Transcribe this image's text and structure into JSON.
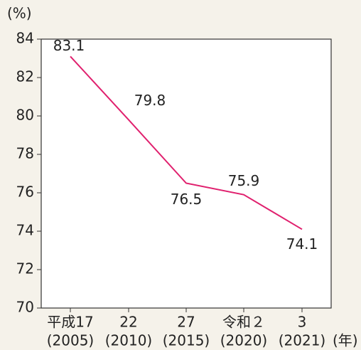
{
  "chart_data": {
    "type": "line",
    "y_label": "(%)",
    "x_unit": "(年)",
    "categories": [
      "平成17",
      "22",
      "27",
      "令和２",
      "3"
    ],
    "category_years": [
      "(2005)",
      "(2010)",
      "(2015)",
      "(2020)",
      "(2021)"
    ],
    "series": [
      {
        "color": "#e0206e",
        "values": [
          83.1,
          79.8,
          76.5,
          75.9,
          74.1
        ]
      }
    ],
    "ylim": [
      70,
      84
    ],
    "yticks": [
      70,
      72,
      74,
      76,
      78,
      80,
      82,
      84
    ]
  }
}
